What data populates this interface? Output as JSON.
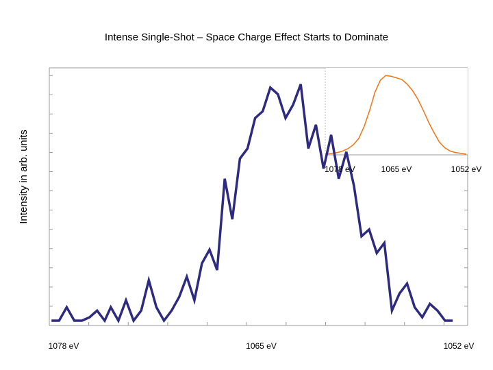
{
  "slide": {
    "title": "Intense Single-Shot – Space Charge Effect Starts to Dominate",
    "ylabel": "Intensity in arb. units"
  },
  "chart_data": [
    {
      "type": "line",
      "title": "Intense Single-Shot – Space Charge Effect Starts to Dominate",
      "ylabel": "Intensity in arb. units",
      "xlabel": "",
      "x_axis": "energy, decreasing to the right",
      "x_ticks": [
        "1078 eV",
        "1065 eV",
        "1052 eV"
      ],
      "x_tick_values": [
        1078,
        1065,
        1052
      ],
      "xlim": [
        1078,
        1052
      ],
      "ylim": [
        0,
        100
      ],
      "y_ticks_labeled": false,
      "grid": false,
      "color": "#2e2a80",
      "series": [
        {
          "x": [
            1078.8,
            1078.3,
            1077.8,
            1077.3,
            1076.8,
            1076.3,
            1075.8,
            1075.3,
            1074.9,
            1074.4,
            1073.9,
            1073.4,
            1072.9,
            1072.4,
            1071.9,
            1071.4,
            1070.9,
            1070.4,
            1069.9,
            1069.4,
            1068.9,
            1068.4,
            1067.9,
            1067.4,
            1066.9,
            1066.4,
            1065.9,
            1065.4,
            1064.9,
            1064.4,
            1063.9,
            1063.4,
            1062.9,
            1062.4,
            1061.9,
            1061.4,
            1060.9,
            1060.4,
            1059.9,
            1059.4,
            1058.9,
            1058.4,
            1057.9,
            1057.4,
            1056.9,
            1056.4,
            1055.9,
            1055.4,
            1054.9,
            1054.4,
            1053.9,
            1053.4,
            1052.9,
            1052.4
          ],
          "y": [
            0,
            0,
            5.6,
            0,
            0,
            1.4,
            4.2,
            0,
            5.6,
            0,
            8.5,
            0,
            4.2,
            16.9,
            5.6,
            0,
            4.2,
            9.9,
            18.3,
            8.5,
            23.9,
            29.6,
            21.1,
            59.2,
            42.3,
            67.6,
            71.8,
            84.5,
            87.3,
            97.2,
            94.4,
            84.5,
            90.1,
            98.6,
            71.8,
            81.7,
            63.4,
            77.5,
            59.2,
            70.4,
            56.3,
            35.2,
            38,
            28.2,
            32.4,
            4.2,
            11.3,
            15.5,
            5.6,
            1.4,
            7,
            4.2,
            0,
            0
          ]
        }
      ]
    },
    {
      "type": "line",
      "title": "",
      "x_ticks": [
        "1078 eV",
        "1065 eV",
        "1052 eV"
      ],
      "x_tick_values": [
        1078,
        1065,
        1052
      ],
      "xlim": [
        1078,
        1052
      ],
      "ylim": [
        0,
        100
      ],
      "grid": false,
      "color": "#f07a20",
      "series": [
        {
          "x": [
            1078,
            1077,
            1076,
            1075,
            1074,
            1073,
            1072,
            1071,
            1070,
            1069,
            1068,
            1067,
            1066,
            1065,
            1064,
            1063,
            1062,
            1061,
            1060,
            1059,
            1058,
            1057,
            1056,
            1055,
            1054,
            1053,
            1052
          ],
          "y": [
            0,
            1,
            2,
            4,
            7,
            12,
            20,
            35,
            55,
            78,
            93,
            99,
            98,
            96,
            94,
            88,
            80,
            69,
            55,
            40,
            27,
            15,
            8,
            4,
            2,
            1,
            0
          ]
        }
      ]
    }
  ]
}
